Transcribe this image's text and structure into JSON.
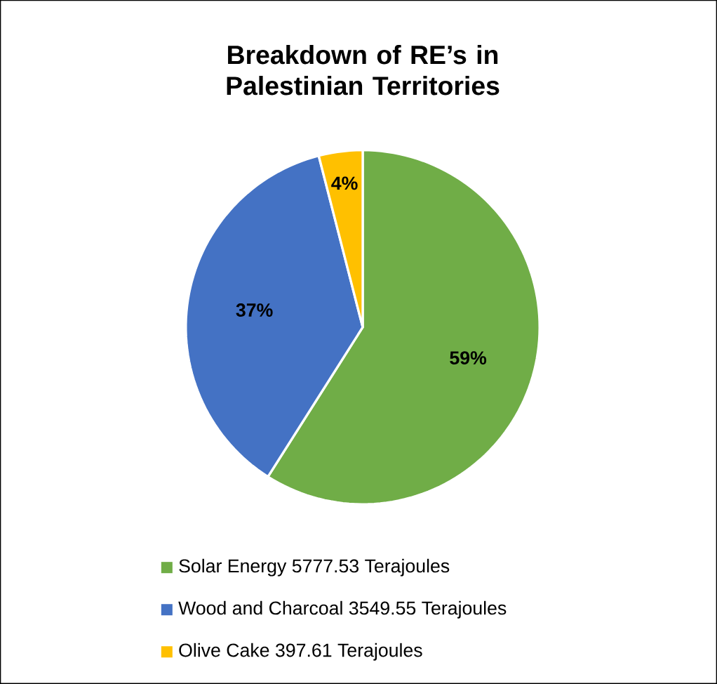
{
  "chart_data": {
    "type": "pie",
    "title": "Breakdown of RE’s in Palestinian Territories",
    "categories": [
      "Solar Energy  5777.53 Terajoules",
      "Wood and Charcoal 3549.55 Terajoules",
      "Olive Cake 397.61 Terajoules"
    ],
    "values": [
      59,
      37,
      4
    ],
    "value_labels": [
      "59%",
      "37%",
      "4%"
    ],
    "colors": [
      "#70ad47",
      "#4472c4",
      "#ffc000"
    ],
    "legend": "bottom"
  }
}
